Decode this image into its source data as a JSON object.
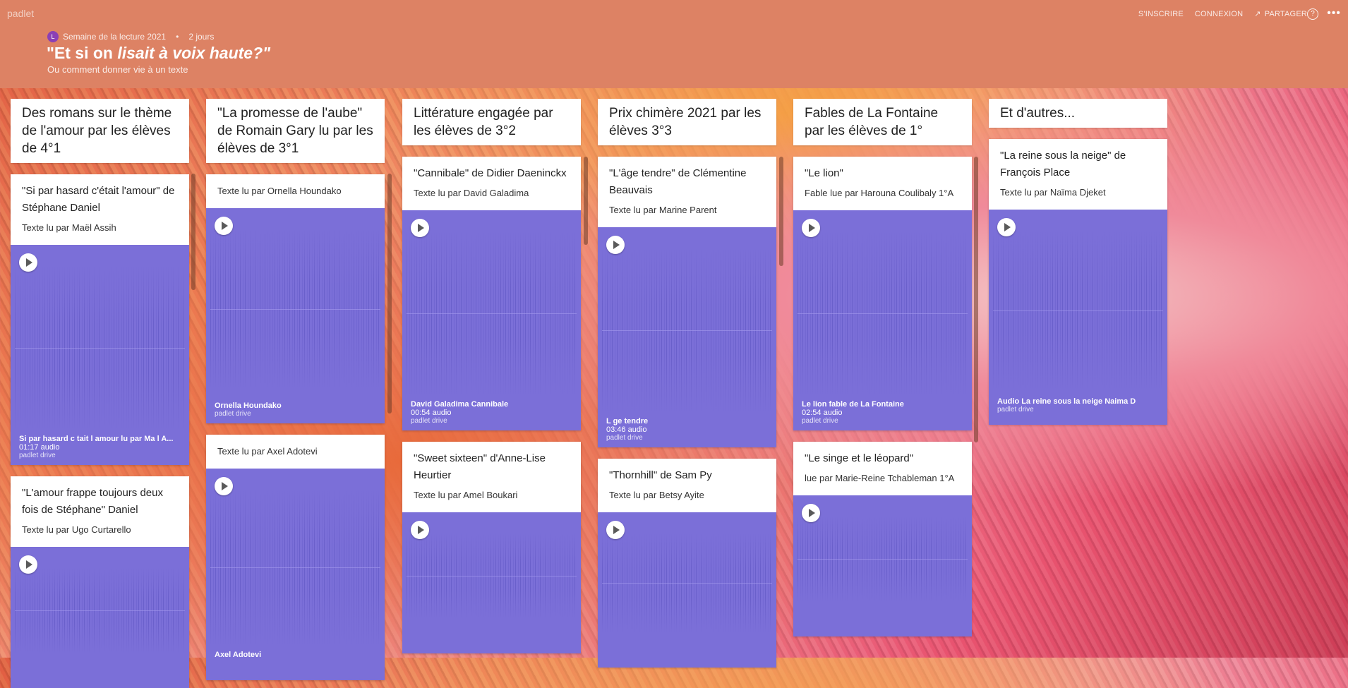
{
  "brand": "padlet",
  "topnav": {
    "signup": "S'INSCRIRE",
    "login": "CONNEXION",
    "share": "PARTAGER"
  },
  "meta": {
    "avatar": "L",
    "author": "Semaine de la lecture 2021",
    "age": "2 jours"
  },
  "header": {
    "title_a": "\"Et si on ",
    "title_b": "lisait à voix haute?\"",
    "subtitle": "Ou comment donner vie à un texte"
  },
  "columns": [
    {
      "title": "Des romans sur le thème de l'amour par les élèves de 4°1",
      "posts": [
        {
          "title": "\"Si par hasard c'était l'amour\" de Stéphane Daniel",
          "body": "Texte lu par Maël Assih",
          "audio_name": "Si par hasard c tait l amour lu par Ma l A...",
          "audio_dur": "01:17 audio",
          "audio_src": "padlet drive"
        },
        {
          "title": "\"L'amour frappe toujours deux fois de Stéphane\" Daniel",
          "body": "Texte lu par Ugo Curtarello"
        }
      ]
    },
    {
      "title": "\"La promesse de l'aube\" de Romain Gary lu par les élèves de 3°1",
      "posts": [
        {
          "body": "Texte lu par Ornella Houndako",
          "audio_name": "Ornella Houndako",
          "audio_src": "padlet drive"
        },
        {
          "body": "Texte lu par Axel Adotevi",
          "audio_name": "Axel Adotevi"
        }
      ]
    },
    {
      "title": "Littérature engagée par les élèves de 3°2",
      "posts": [
        {
          "title": "\"Cannibale\" de Didier Daeninckx",
          "body": "Texte lu par David Galadima",
          "audio_name": "David Galadima Cannibale",
          "audio_dur": "00:54 audio",
          "audio_src": "padlet drive"
        },
        {
          "title": "\"Sweet sixteen\" d'Anne-Lise Heurtier",
          "body": "Texte lu par Amel Boukari"
        }
      ]
    },
    {
      "title": "Prix chimère 2021 par les élèves 3°3",
      "posts": [
        {
          "title": "\"L'âge tendre\" de Clémentine Beauvais",
          "body": "Texte lu par Marine Parent",
          "audio_name": "L ge tendre",
          "audio_dur": "03:46 audio",
          "audio_src": "padlet drive"
        },
        {
          "title": "\"Thornhill\" de Sam Py",
          "body": "Texte lu par Betsy Ayite"
        }
      ]
    },
    {
      "title": "Fables de La Fontaine par les élèves de 1°",
      "posts": [
        {
          "title": "\"Le lion\"",
          "body": "Fable lue par Harouna Coulibaly 1°A",
          "audio_name": "Le lion fable de La Fontaine",
          "audio_dur": "02:54 audio",
          "audio_src": "padlet drive"
        },
        {
          "title": "\"Le singe et le léopard\"",
          "body": "lue par Marie-Reine Tchableman 1°A"
        }
      ]
    },
    {
      "title": "Et d'autres...",
      "posts": [
        {
          "title": "\"La reine sous la neige\" de François Place",
          "body": "Texte lu par Naïma Djeket",
          "audio_name": "Audio La reine sous la neige Naima D",
          "audio_src": "padlet drive"
        }
      ]
    }
  ]
}
